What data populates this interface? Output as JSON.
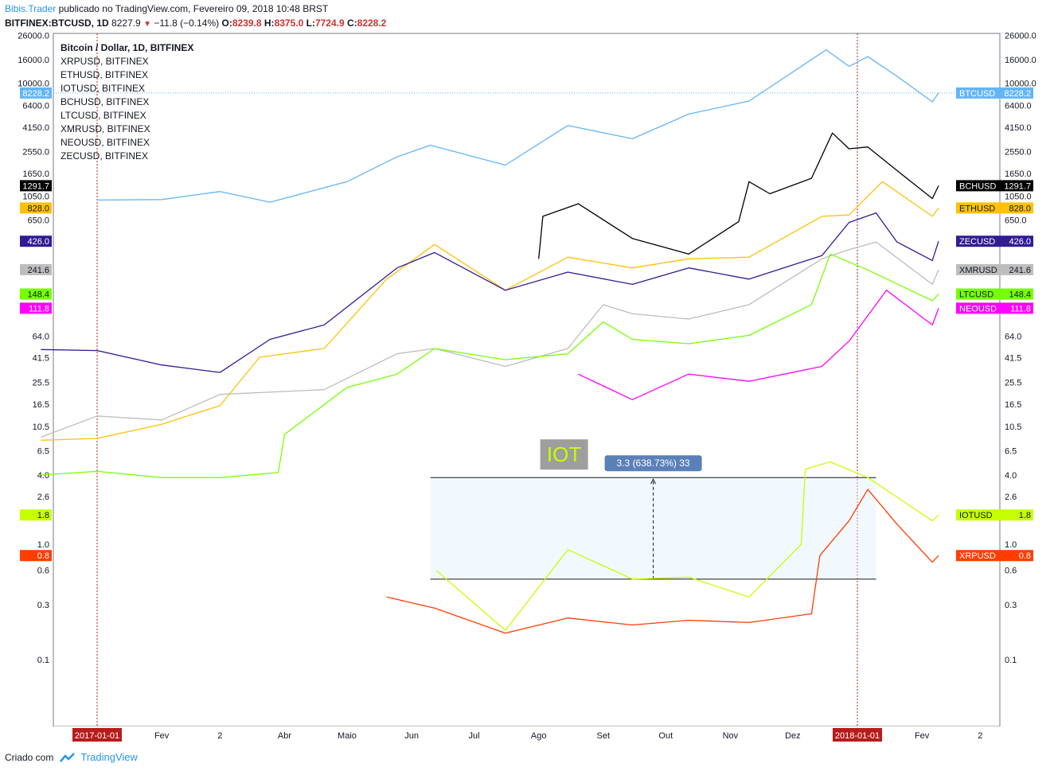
{
  "header": {
    "brand": "Bibis.Trader",
    "published": " publicado no TradingView.com, Fevereiro 09, 2018 10:48 BRST",
    "symbol": "BITFINEX:BTCUSD, 1D",
    "last": "8227.9",
    "change": "−11.8 (−0.14%)",
    "o_label": "O:",
    "o_value": "8239.8",
    "h_label": "H:",
    "h_value": "8375.0",
    "l_label": "L:",
    "l_value": "7724.9",
    "c_label": "C:",
    "c_value": "8228.2"
  },
  "footer": {
    "created": "Criado com",
    "tradingview": "TradingView"
  },
  "colors": {
    "BTCUSD": "#64b5f6",
    "BCHUSD": "#000000",
    "ETHUSD": "#ffc107",
    "ZECUSD": "#311b92",
    "XMRUSD": "#bdbdbd",
    "LTCUSD": "#76ff03",
    "NEOUSD": "#ff00ff",
    "IOTUSD": "#c6ff00",
    "XRPUSD": "#ff3d00",
    "event_line": "#b71c1c"
  },
  "chart_data": {
    "type": "line",
    "title": "Bitcoin / Dollar, 1D, BITFINEX",
    "legend": [
      "XRPUSD, BITFINEX",
      "ETHUSD, BITFINEX",
      "IOTUSD, BITFINEX",
      "BCHUSD, BITFINEX",
      "LTCUSD, BITFINEX",
      "XMRUSD, BITFINEX",
      "NEOUSD, BITFINEX",
      "ZECUSD, BITFINEX"
    ],
    "legend_position": "top-left",
    "scale": "log",
    "x_ticks": [
      "Fev",
      "2",
      "Abr",
      "Maio",
      "Jun",
      "Jul",
      "Ago",
      "Set",
      "Out",
      "Nov",
      "Dez",
      "Fev",
      "2"
    ],
    "x_highlight": [
      "2017-01-01",
      "2018-01-01"
    ],
    "y_ticks": [
      "26000.0",
      "16000.0",
      "10000.0",
      "6400.0",
      "4150.0",
      "2550.0",
      "1650.0",
      "1050.0",
      "650.0",
      "64.0",
      "41.5",
      "25.5",
      "16.5",
      "10.5",
      "6.5",
      "4.0",
      "2.6",
      "1.8",
      "1.0",
      "0.6",
      "0.3",
      "0.1"
    ],
    "price_labels": [
      {
        "name": "BTCUSD",
        "value": "8228.2"
      },
      {
        "name": "BCHUSD",
        "value": "1291.7"
      },
      {
        "name": "ETHUSD",
        "value": "828.0"
      },
      {
        "name": "ZECUSD",
        "value": "426.0"
      },
      {
        "name": "XMRUSD",
        "value": "241.6"
      },
      {
        "name": "LTCUSD",
        "value": "148.4"
      },
      {
        "name": "NEOUSD",
        "value": "111.8"
      },
      {
        "name": "IOTUSD",
        "value": "1.8"
      },
      {
        "name": "XRPUSD",
        "value": "0.8"
      }
    ],
    "series": [
      {
        "name": "BTCUSD",
        "points": [
          [
            "2017-01-01",
            970
          ],
          [
            "2017-02-01",
            980
          ],
          [
            "2017-03-01",
            1150
          ],
          [
            "2017-03-25",
            930
          ],
          [
            "2017-05-01",
            1400
          ],
          [
            "2017-05-25",
            2300
          ],
          [
            "2017-06-10",
            2900
          ],
          [
            "2017-07-16",
            1950
          ],
          [
            "2017-08-15",
            4300
          ],
          [
            "2017-09-15",
            3300
          ],
          [
            "2017-10-12",
            5400
          ],
          [
            "2017-11-10",
            7000
          ],
          [
            "2017-12-17",
            19500
          ],
          [
            "2017-12-28",
            14000
          ],
          [
            "2018-01-06",
            17000
          ],
          [
            "2018-01-20",
            11500
          ],
          [
            "2018-02-06",
            6900
          ],
          [
            "2018-02-09",
            8228
          ]
        ]
      },
      {
        "name": "BCHUSD",
        "points": [
          [
            "2017-08-01",
            300
          ],
          [
            "2017-08-03",
            700
          ],
          [
            "2017-08-20",
            900
          ],
          [
            "2017-09-15",
            450
          ],
          [
            "2017-10-12",
            330
          ],
          [
            "2017-11-05",
            630
          ],
          [
            "2017-11-10",
            1400
          ],
          [
            "2017-11-20",
            1100
          ],
          [
            "2017-12-10",
            1500
          ],
          [
            "2017-12-20",
            3700
          ],
          [
            "2017-12-28",
            2700
          ],
          [
            "2018-01-06",
            2800
          ],
          [
            "2018-01-20",
            1750
          ],
          [
            "2018-02-06",
            1000
          ],
          [
            "2018-02-09",
            1291
          ]
        ]
      },
      {
        "name": "ETHUSD",
        "points": [
          [
            "2016-12-05",
            8
          ],
          [
            "2017-01-01",
            8.3
          ],
          [
            "2017-02-01",
            11
          ],
          [
            "2017-03-01",
            16
          ],
          [
            "2017-03-20",
            42
          ],
          [
            "2017-04-20",
            50
          ],
          [
            "2017-05-20",
            200
          ],
          [
            "2017-06-12",
            400
          ],
          [
            "2017-07-16",
            160
          ],
          [
            "2017-08-15",
            310
          ],
          [
            "2017-09-15",
            250
          ],
          [
            "2017-10-12",
            300
          ],
          [
            "2017-11-10",
            310
          ],
          [
            "2017-12-15",
            700
          ],
          [
            "2017-12-28",
            720
          ],
          [
            "2018-01-13",
            1400
          ],
          [
            "2018-02-06",
            700
          ],
          [
            "2018-02-09",
            828
          ]
        ]
      },
      {
        "name": "ZECUSD",
        "points": [
          [
            "2016-12-05",
            49
          ],
          [
            "2017-01-01",
            48
          ],
          [
            "2017-02-01",
            36
          ],
          [
            "2017-03-01",
            31
          ],
          [
            "2017-03-25",
            60
          ],
          [
            "2017-04-20",
            80
          ],
          [
            "2017-05-25",
            250
          ],
          [
            "2017-06-12",
            340
          ],
          [
            "2017-07-16",
            160
          ],
          [
            "2017-08-15",
            230
          ],
          [
            "2017-09-15",
            180
          ],
          [
            "2017-10-12",
            250
          ],
          [
            "2017-11-10",
            200
          ],
          [
            "2017-12-15",
            320
          ],
          [
            "2017-12-28",
            620
          ],
          [
            "2018-01-10",
            750
          ],
          [
            "2018-01-20",
            420
          ],
          [
            "2018-02-06",
            290
          ],
          [
            "2018-02-09",
            426
          ]
        ]
      },
      {
        "name": "XMRUSD",
        "points": [
          [
            "2016-12-05",
            8.5
          ],
          [
            "2017-01-01",
            13
          ],
          [
            "2017-02-01",
            12
          ],
          [
            "2017-03-01",
            20
          ],
          [
            "2017-04-20",
            22
          ],
          [
            "2017-05-25",
            45
          ],
          [
            "2017-06-12",
            50
          ],
          [
            "2017-07-16",
            35
          ],
          [
            "2017-08-15",
            50
          ],
          [
            "2017-09-01",
            120
          ],
          [
            "2017-09-15",
            100
          ],
          [
            "2017-10-12",
            90
          ],
          [
            "2017-11-10",
            120
          ],
          [
            "2017-12-15",
            300
          ],
          [
            "2017-12-28",
            360
          ],
          [
            "2018-01-10",
            420
          ],
          [
            "2018-02-06",
            180
          ],
          [
            "2018-02-09",
            241
          ]
        ]
      },
      {
        "name": "LTCUSD",
        "points": [
          [
            "2016-12-05",
            4
          ],
          [
            "2017-01-01",
            4.3
          ],
          [
            "2017-02-01",
            3.8
          ],
          [
            "2017-03-01",
            3.8
          ],
          [
            "2017-03-29",
            4.2
          ],
          [
            "2017-04-01",
            9
          ],
          [
            "2017-05-01",
            23
          ],
          [
            "2017-05-25",
            30
          ],
          [
            "2017-06-12",
            50
          ],
          [
            "2017-07-16",
            40
          ],
          [
            "2017-08-15",
            45
          ],
          [
            "2017-09-01",
            85
          ],
          [
            "2017-09-15",
            60
          ],
          [
            "2017-10-12",
            55
          ],
          [
            "2017-11-10",
            65
          ],
          [
            "2017-12-10",
            120
          ],
          [
            "2017-12-19",
            330
          ],
          [
            "2018-01-06",
            240
          ],
          [
            "2018-02-06",
            130
          ],
          [
            "2018-02-09",
            148
          ]
        ]
      },
      {
        "name": "NEOUSD",
        "points": [
          [
            "2017-08-20",
            30
          ],
          [
            "2017-09-15",
            18
          ],
          [
            "2017-10-12",
            30
          ],
          [
            "2017-11-10",
            26
          ],
          [
            "2017-12-15",
            35
          ],
          [
            "2017-12-28",
            58
          ],
          [
            "2018-01-15",
            160
          ],
          [
            "2018-02-06",
            80
          ],
          [
            "2018-02-09",
            111.8
          ]
        ]
      },
      {
        "name": "IOTUSD",
        "points": [
          [
            "2017-06-13",
            0.59
          ],
          [
            "2017-07-16",
            0.18
          ],
          [
            "2017-08-15",
            0.9
          ],
          [
            "2017-09-15",
            0.5
          ],
          [
            "2017-10-12",
            0.52
          ],
          [
            "2017-11-10",
            0.35
          ],
          [
            "2017-12-05",
            1.0
          ],
          [
            "2017-12-07",
            4.5
          ],
          [
            "2017-12-19",
            5.2
          ],
          [
            "2018-01-06",
            3.8
          ],
          [
            "2018-02-06",
            1.6
          ],
          [
            "2018-02-09",
            1.8
          ]
        ]
      },
      {
        "name": "XRPUSD",
        "points": [
          [
            "2017-05-20",
            0.35
          ],
          [
            "2017-06-12",
            0.28
          ],
          [
            "2017-07-16",
            0.17
          ],
          [
            "2017-08-15",
            0.23
          ],
          [
            "2017-09-15",
            0.2
          ],
          [
            "2017-10-12",
            0.22
          ],
          [
            "2017-11-10",
            0.21
          ],
          [
            "2017-12-10",
            0.25
          ],
          [
            "2017-12-14",
            0.8
          ],
          [
            "2017-12-28",
            1.6
          ],
          [
            "2018-01-06",
            3.0
          ],
          [
            "2018-01-20",
            1.5
          ],
          [
            "2018-02-06",
            0.7
          ],
          [
            "2018-02-09",
            0.8
          ]
        ]
      }
    ],
    "annotation": {
      "label": "IOT",
      "measure": "3.3 (638.73%) 33",
      "from": [
        "2017-06-10",
        0.5
      ],
      "to": [
        "2018-01-10",
        3.8
      ]
    }
  }
}
